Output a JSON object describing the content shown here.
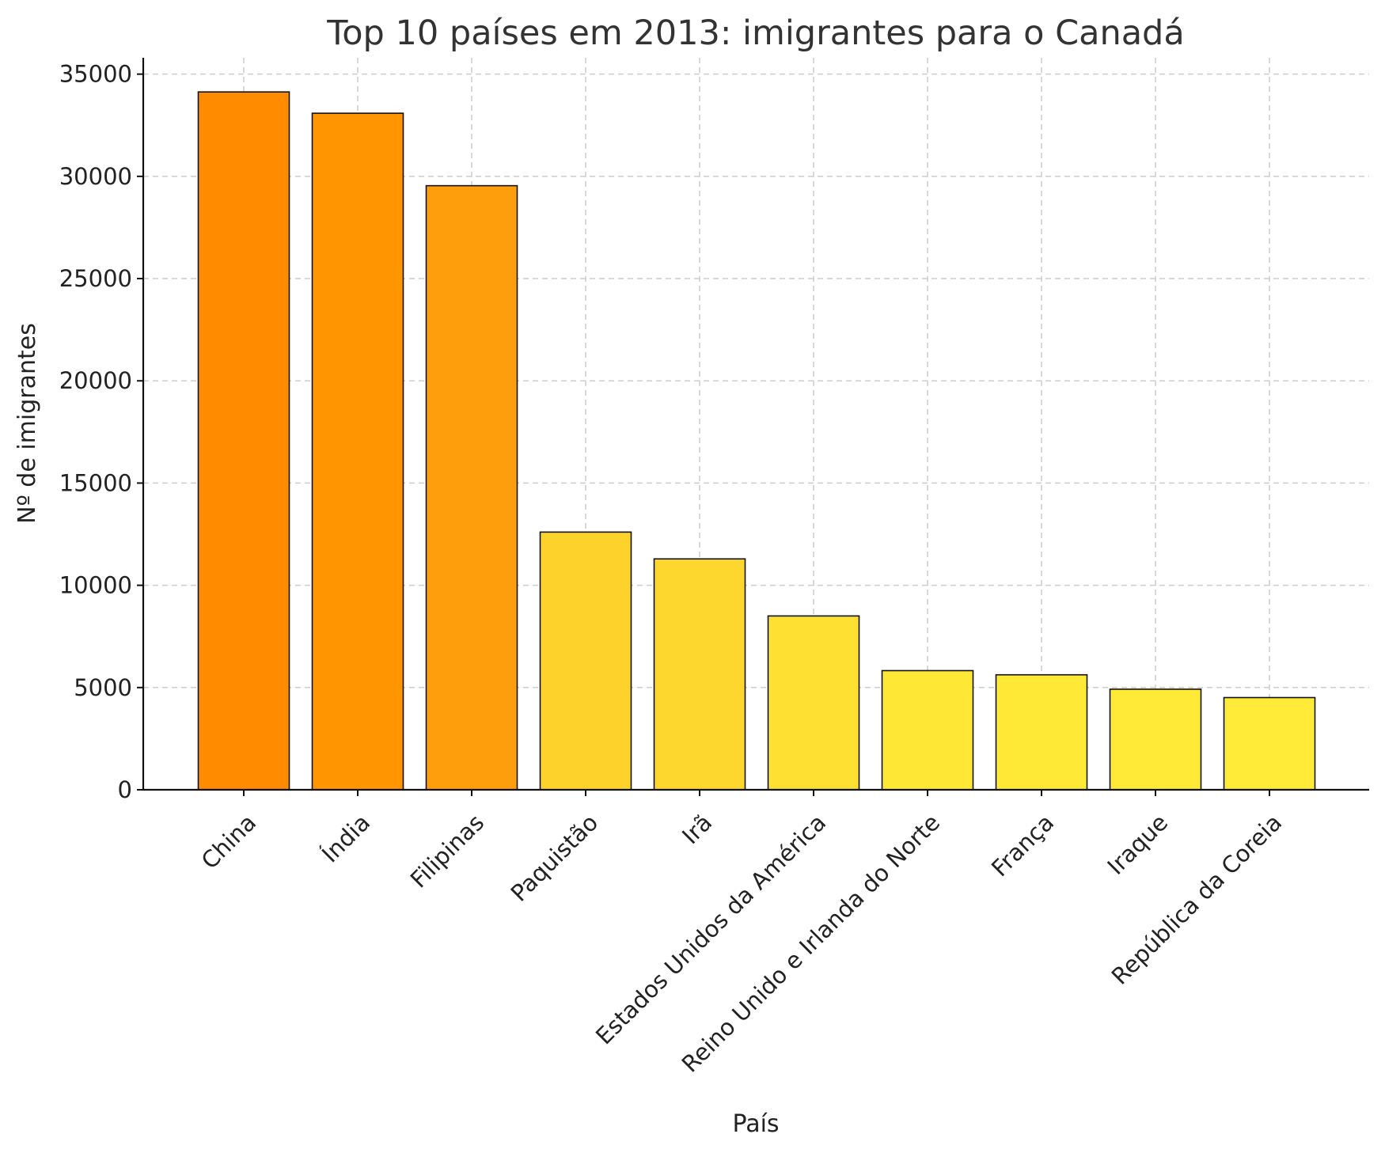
{
  "chart_data": {
    "type": "bar",
    "title": "Top 10 países em 2013: imigrantes para o Canadá",
    "xlabel": "País",
    "ylabel": "Nº de imigrantes",
    "categories": [
      "China",
      "Índia",
      "Filipinas",
      "Paquistão",
      "Irã",
      "Estados Unidos da América",
      "Reino Unido e Irlanda do Norte",
      "França",
      "Iraque",
      "República da Coreia"
    ],
    "values": [
      34129,
      33087,
      29544,
      12603,
      11291,
      8501,
      5827,
      5623,
      4918,
      4509
    ],
    "colors": [
      "#ff8c00",
      "#ff9500",
      "#ff9e0c",
      "#fdd22b",
      "#fdd62e",
      "#fde032",
      "#fee735",
      "#feea36",
      "#ffeb37",
      "#ffeb38"
    ],
    "ylim": [
      0,
      35800
    ],
    "yticks": [
      0,
      5000,
      10000,
      15000,
      20000,
      25000,
      30000,
      35000
    ],
    "grid": true,
    "legend": "none"
  }
}
